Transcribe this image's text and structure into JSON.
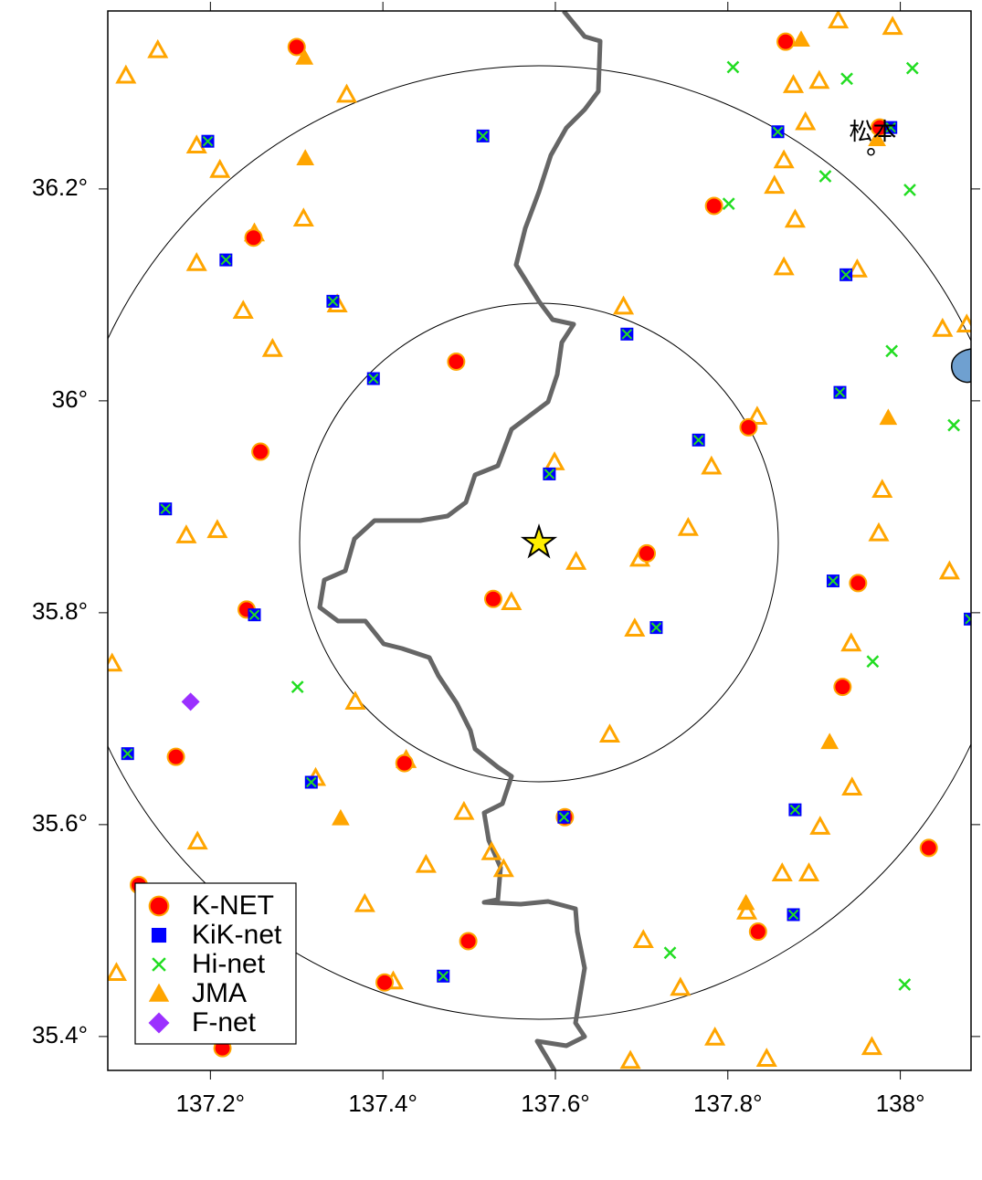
{
  "chart_data": {
    "type": "scatter",
    "xlim": [
      137.081,
      138.082
    ],
    "ylim": [
      35.368,
      36.368
    ],
    "xticks": [
      {
        "value": 137.2,
        "label": "137.2°"
      },
      {
        "value": 137.4,
        "label": "137.4°"
      },
      {
        "value": 137.6,
        "label": "137.6°"
      },
      {
        "value": 137.8,
        "label": "137.8°"
      },
      {
        "value": 138,
        "label": "138°"
      }
    ],
    "yticks": [
      {
        "value": 35.4,
        "label": "35.4°"
      },
      {
        "value": 35.6,
        "label": "35.6°"
      },
      {
        "value": 35.8,
        "label": "35.8°"
      },
      {
        "value": 36,
        "label": "36°"
      },
      {
        "value": 36.2,
        "label": "36.2°"
      }
    ],
    "legend": "lower left",
    "epicenter": [
      137.581,
      35.866
    ],
    "annotations": [
      {
        "text": "松本",
        "x": 137.966,
        "y": 36.235
      }
    ],
    "series": [
      {
        "name": "K-NET",
        "color": "#ff0000",
        "marker": "circle",
        "x": [
          137.3,
          137.867,
          137.976,
          137.784,
          137.25,
          137.485,
          137.258,
          137.824,
          137.706,
          137.528,
          137.242,
          137.951,
          137.933,
          137.16,
          137.425,
          137.611,
          138.033,
          137.117,
          137.499,
          137.835,
          137.402,
          137.214
        ],
        "y": [
          36.334,
          36.339,
          36.258,
          36.184,
          36.154,
          36.037,
          35.952,
          35.975,
          35.856,
          35.813,
          35.803,
          35.828,
          35.73,
          35.664,
          35.658,
          35.607,
          35.578,
          35.543,
          35.49,
          35.499,
          35.451,
          35.389
        ]
      },
      {
        "name": "KiK-net",
        "color": "#0000ff",
        "marker": "square",
        "x": [
          137.197,
          137.858,
          137.989,
          137.516,
          137.218,
          137.342,
          137.937,
          137.683,
          137.389,
          137.93,
          137.766,
          137.593,
          137.148,
          137.922,
          137.251,
          137.717,
          138.081,
          137.104,
          137.317,
          137.878,
          137.47,
          137.876,
          137.61
        ],
        "y": [
          36.245,
          36.254,
          36.258,
          36.25,
          36.133,
          36.094,
          36.119,
          36.063,
          36.021,
          36.008,
          35.963,
          35.931,
          35.898,
          35.83,
          35.798,
          35.786,
          35.794,
          35.667,
          35.64,
          35.614,
          35.457,
          35.515,
          35.607
        ]
      },
      {
        "name": "Hi-net",
        "color": "#22dd22",
        "marker": "cross",
        "x": [
          137.806,
          137.938,
          138.014,
          137.913,
          137.801,
          138.011,
          137.99,
          138.062,
          137.968,
          137.301,
          137.733,
          138.005
        ],
        "y": [
          36.315,
          36.304,
          36.314,
          36.212,
          36.186,
          36.199,
          36.047,
          35.977,
          35.754,
          35.73,
          35.479,
          35.449
        ]
      },
      {
        "name": "JMA",
        "color": "#ffa500",
        "marker": "triangle",
        "x": [
          137.309,
          137.885,
          137.31,
          137.986,
          137.918,
          137.351,
          137.821,
          137.973
        ],
        "y": [
          36.324,
          36.341,
          36.229,
          35.984,
          35.678,
          35.606,
          35.526,
          36.247
        ]
      },
      {
        "color": "#ffa500",
        "marker": "open-triangle",
        "x": [
          137.102,
          137.139,
          137.928,
          137.991,
          137.876,
          137.906,
          137.358,
          137.184,
          137.89,
          137.865,
          137.854,
          137.211,
          137.878,
          137.308,
          137.251,
          137.184,
          137.238,
          137.865,
          137.95,
          137.272,
          137.347,
          137.679,
          138.049,
          138.077,
          137.834,
          137.599,
          137.781,
          137.979,
          137.172,
          137.208,
          137.754,
          137.624,
          137.698,
          137.975,
          138.057,
          137.549,
          137.692,
          137.943,
          137.086,
          137.368,
          137.663,
          137.427,
          137.322,
          137.185,
          137.494,
          137.944,
          137.907,
          137.526,
          137.54,
          137.45,
          137.863,
          137.894,
          137.379,
          137.822,
          137.702,
          137.412,
          137.745,
          137.091,
          137.785,
          137.845,
          137.967,
          137.687
        ],
        "y": [
          36.307,
          36.331,
          36.359,
          36.353,
          36.298,
          36.302,
          36.289,
          36.241,
          36.263,
          36.227,
          36.203,
          36.218,
          36.171,
          36.172,
          36.158,
          36.13,
          36.085,
          36.126,
          36.124,
          36.049,
          36.091,
          36.089,
          36.068,
          36.072,
          35.985,
          35.942,
          35.938,
          35.916,
          35.873,
          35.878,
          35.88,
          35.848,
          35.851,
          35.875,
          35.839,
          35.81,
          35.785,
          35.771,
          35.752,
          35.716,
          35.685,
          35.661,
          35.644,
          35.584,
          35.612,
          35.635,
          35.598,
          35.574,
          35.558,
          35.562,
          35.554,
          35.554,
          35.525,
          35.518,
          35.491,
          35.452,
          35.446,
          35.46,
          35.399,
          35.379,
          35.39,
          35.377
        ]
      },
      {
        "name": "F-net",
        "color": "#9b30ff",
        "marker": "diamond",
        "x": [
          137.177
        ],
        "y": [
          35.716
        ]
      }
    ]
  }
}
